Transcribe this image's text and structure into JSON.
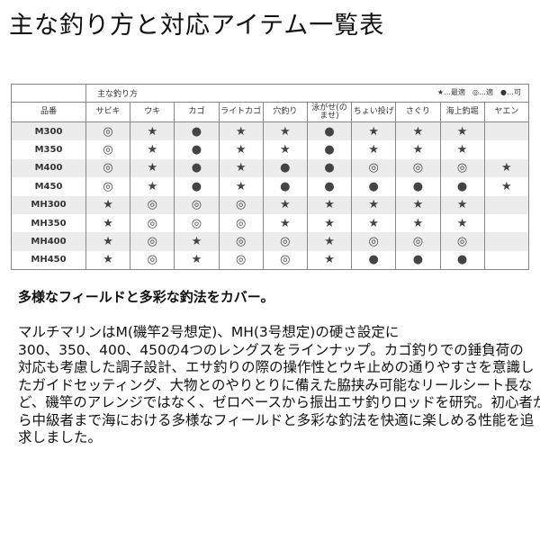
{
  "title": "主な釣り方と対応アイテム一覧表",
  "table": {
    "group_header": "主な釣り方",
    "legend": [
      {
        "mark": "★",
        "label": "…最適"
      },
      {
        "mark": "◎",
        "label": "…適"
      },
      {
        "mark": "●",
        "label": "…可"
      }
    ],
    "model_header": "品番",
    "columns": [
      "サビキ",
      "ウキ",
      "カゴ",
      "ライトカゴ",
      "穴釣り",
      "泳がせ(のませ)",
      "ちょい投げ",
      "さぐり",
      "海上釣堀",
      "ヤエン"
    ],
    "marks": {
      "s": "★",
      "d": "◎",
      "b": "●"
    },
    "rows": [
      {
        "model": "M300",
        "cells": [
          "d",
          "s",
          "b",
          "s",
          "s",
          "b",
          "s",
          "s",
          "s",
          ""
        ]
      },
      {
        "model": "M350",
        "cells": [
          "d",
          "s",
          "b",
          "s",
          "s",
          "b",
          "s",
          "s",
          "s",
          ""
        ]
      },
      {
        "model": "M400",
        "cells": [
          "d",
          "s",
          "b",
          "s",
          "b",
          "b",
          "d",
          "d",
          "d",
          "s"
        ]
      },
      {
        "model": "M450",
        "cells": [
          "d",
          "s",
          "b",
          "s",
          "b",
          "b",
          "b",
          "b",
          "b",
          "s"
        ]
      },
      {
        "model": "MH300",
        "cells": [
          "s",
          "d",
          "d",
          "d",
          "s",
          "s",
          "s",
          "s",
          "s",
          ""
        ]
      },
      {
        "model": "MH350",
        "cells": [
          "s",
          "d",
          "d",
          "d",
          "s",
          "s",
          "s",
          "s",
          "s",
          ""
        ]
      },
      {
        "model": "MH400",
        "cells": [
          "s",
          "d",
          "s",
          "d",
          "d",
          "s",
          "d",
          "d",
          "d",
          ""
        ]
      },
      {
        "model": "MH450",
        "cells": [
          "s",
          "d",
          "s",
          "d",
          "d",
          "s",
          "b",
          "b",
          "b",
          ""
        ]
      }
    ]
  },
  "description": {
    "heading": "多様なフィールドと多彩な釣法をカバー。",
    "lines": [
      "マルチマリンはM(磯竿2号想定)、MH(3号想定)の硬さ設定に",
      "300、350、400、450の4つのレングスをラインナップ。カゴ釣りでの錘負荷の",
      "対応も考慮した調子設計、エサ釣りの際の操作性とウキ止めの通りやすさを意識し",
      "たガイドセッティング、大物とのやりとりに備えた脇挟み可能なリールシート長な",
      "ど、磯竿のアレンジではなく、ゼロベースから振出エサ釣りロッドを研究。初心者か",
      "ら中級者まで海における多様なフィールドと多彩な釣法を快適に楽しめる性能を追",
      "求しました。"
    ]
  }
}
